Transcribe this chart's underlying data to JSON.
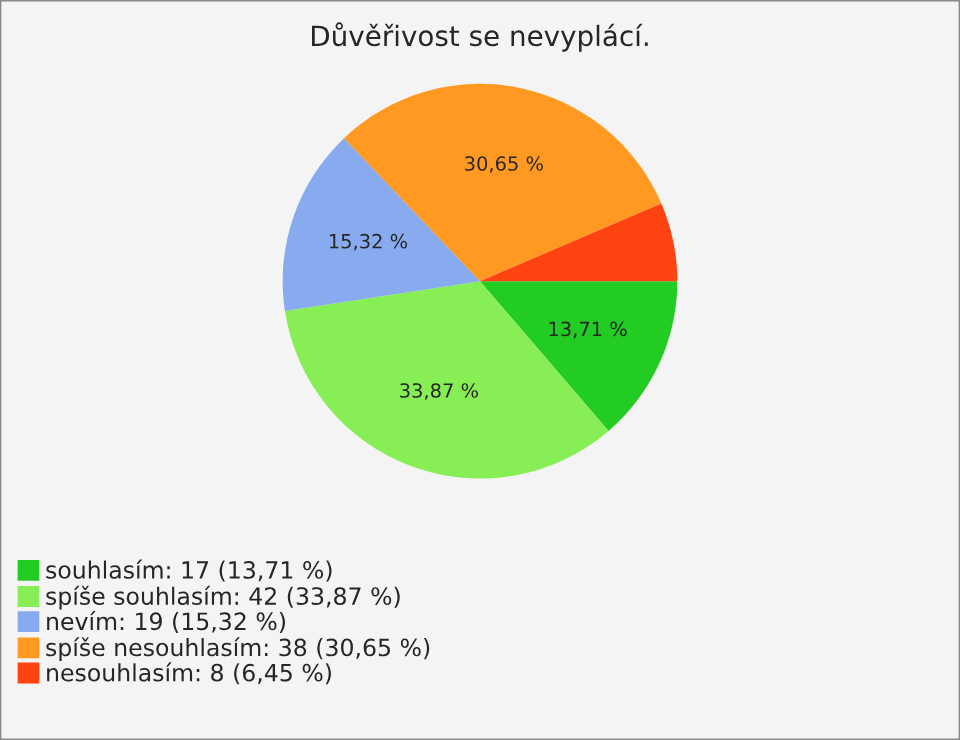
{
  "chart_data": {
    "type": "pie",
    "title": "Důvěřivost se nevyplácí.",
    "categories": [
      "souhlasím: 17 (13,71 %)",
      "spíše souhlasím: 42 (33,87 %)",
      "nevím: 19 (15,32 %)",
      "spíše nesouhlasím: 38 (30,65 %)",
      "nesouhlasím: 8 (6,45 %)"
    ],
    "values": [
      13.71,
      33.87,
      15.32,
      30.65,
      6.45
    ],
    "value_labels": [
      "13,71 %",
      "33,87 %",
      "15,32 %",
      "30,65 %",
      null
    ],
    "colors": [
      "#22cc22",
      "#88ee55",
      "#88aaee",
      "#ff9922",
      "#ff4411"
    ],
    "legend": "bottom left"
  }
}
